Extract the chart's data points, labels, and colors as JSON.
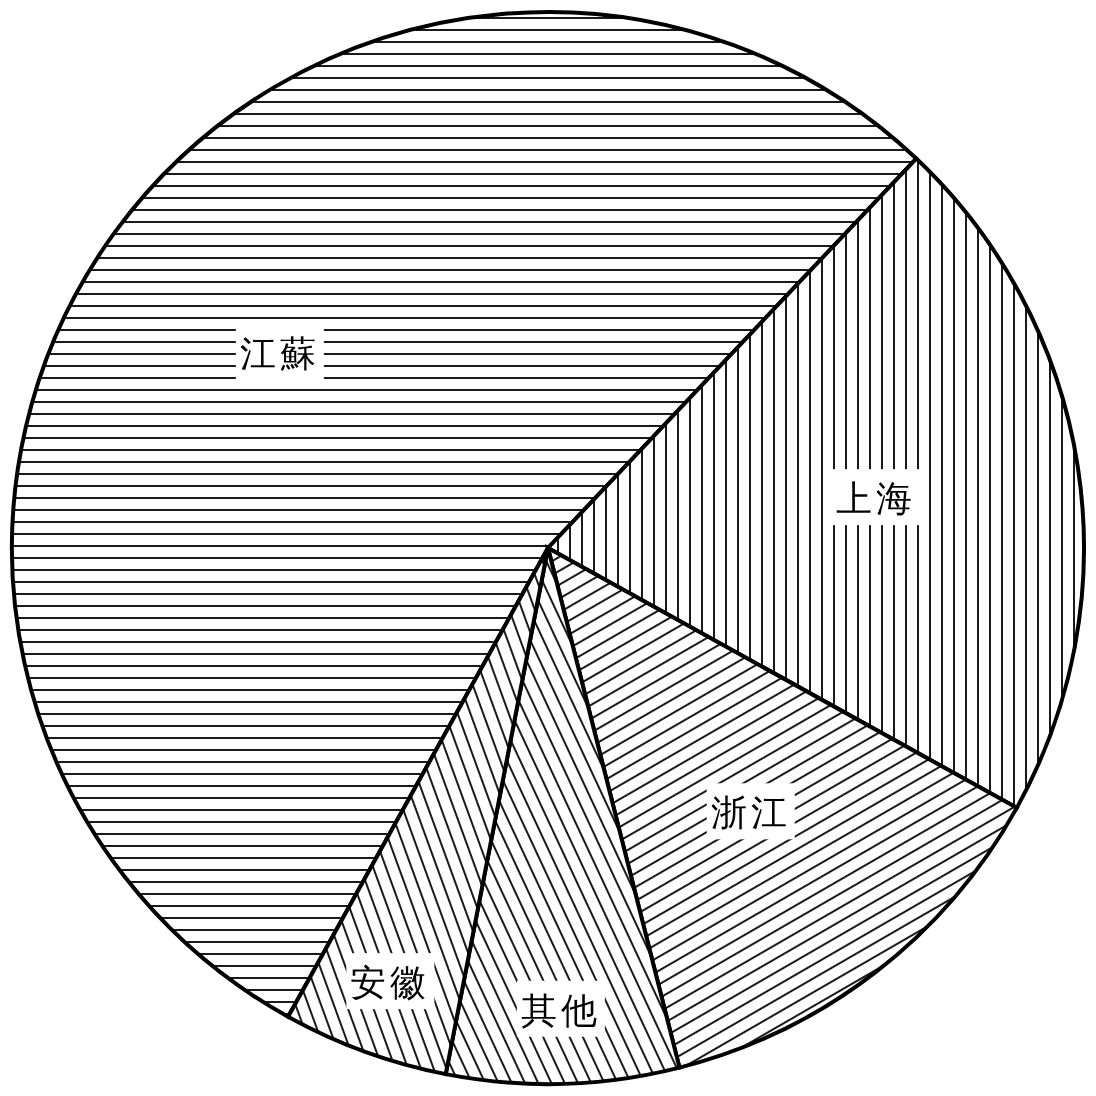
{
  "chart_data": {
    "type": "pie",
    "categories": [
      "江蘇",
      "上海",
      "浙江",
      "其他",
      "安徽"
    ],
    "values": [
      54,
      21,
      13,
      7,
      5
    ],
    "colors": [
      "#000000",
      "#000000",
      "#000000",
      "#000000",
      "#000000"
    ]
  }
}
